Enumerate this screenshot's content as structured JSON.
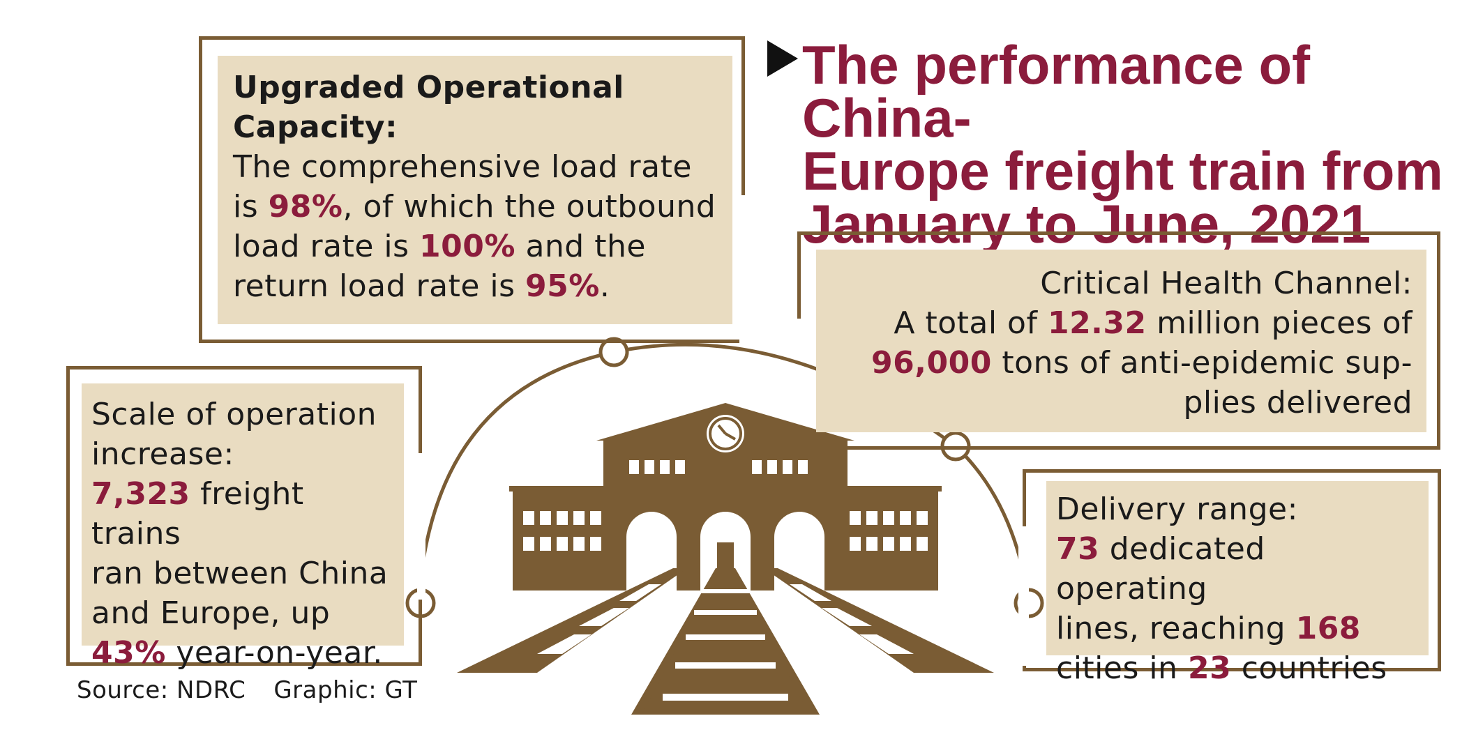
{
  "title": {
    "line1": "The performance of China-",
    "line2": "Europe freight train from",
    "line3": "January to June, 2021"
  },
  "capacity": {
    "heading1": "Upgraded Operational",
    "heading2": "Capacity:",
    "l1": "The comprehensive load rate",
    "l2a": "is ",
    "l2b": "98%",
    "l2c": ", of which the outbound",
    "l3a": "load rate is ",
    "l3b": "100%",
    "l3c": " and the",
    "l4a": "return load rate is ",
    "l4b": "95%",
    "l4c": "."
  },
  "health": {
    "l1": "Critical Health Channel:",
    "l2a": "A total of ",
    "l2b": "12.32",
    "l2c": " million pieces of",
    "l3a": "96,000",
    "l3b": " tons of anti-epidemic sup-",
    "l4": "plies delivered"
  },
  "scale": {
    "l1": "Scale of operation",
    "l2": "increase:",
    "l3a": "7,323",
    "l3b": " freight trains",
    "l4": "ran between China",
    "l5": "and Europe, up",
    "l6a": "43%",
    "l6b": " year-on-year."
  },
  "delivery": {
    "l1": "Delivery range:",
    "l2a": "73",
    "l2b": " dedicated operating",
    "l3a": "lines, reaching ",
    "l3b": "168",
    "l4a": "cities in ",
    "l4b": "23",
    "l4c": " countries"
  },
  "footer": {
    "source": "Source: NDRC",
    "graphic": "Graphic: GT"
  },
  "icons": [
    "station-icon",
    "clock-icon",
    "railway-tracks-icon"
  ],
  "colors": {
    "accent": "#8b1c3c",
    "brown": "#7a5c34",
    "box_bg": "#e9dcc1"
  }
}
